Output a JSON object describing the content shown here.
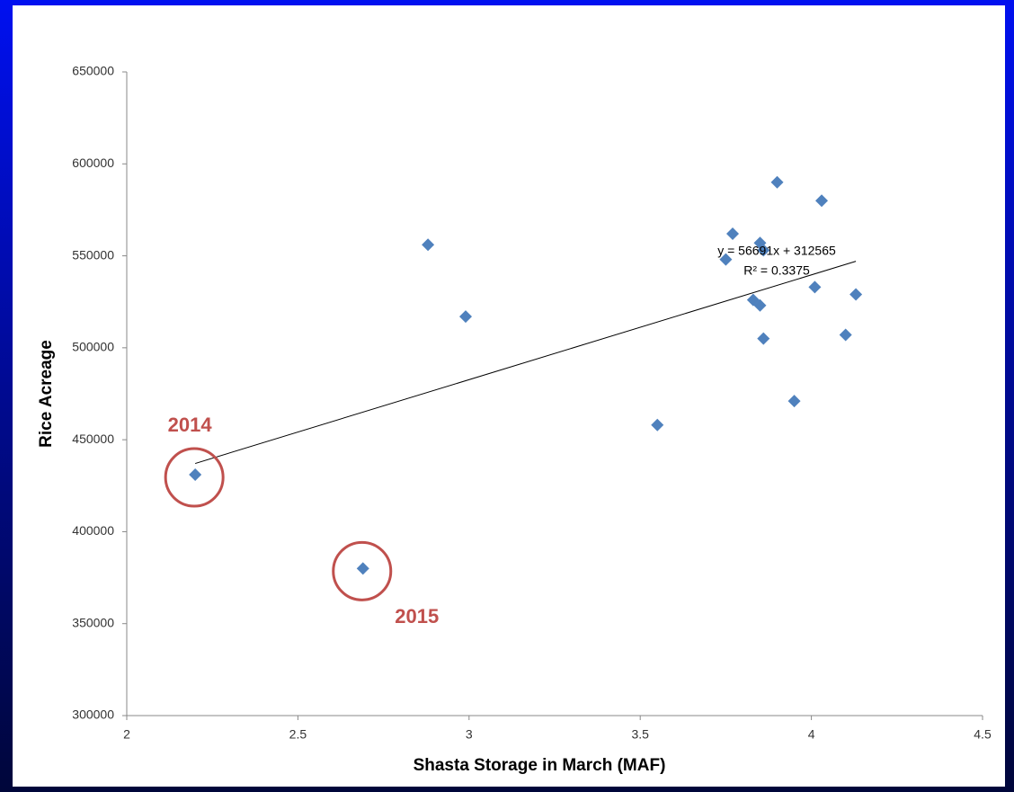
{
  "chart_data": {
    "type": "scatter",
    "x_label": "Shasta Storage in March (MAF)",
    "y_label": "Rice Acreage",
    "x": [
      2.2,
      2.69,
      2.88,
      2.99,
      3.55,
      3.75,
      3.77,
      3.83,
      3.85,
      3.85,
      3.86,
      3.86,
      3.9,
      3.95,
      4.01,
      4.03,
      4.1,
      4.13
    ],
    "y": [
      431000,
      380000,
      556000,
      517000,
      458000,
      548000,
      562000,
      526000,
      557000,
      523000,
      553000,
      505000,
      590000,
      471000,
      533000,
      580000,
      507000,
      529000
    ],
    "color": "#4f81bd",
    "xlim": [
      2,
      4.5
    ],
    "xticks": [
      2,
      2.5,
      3,
      3.5,
      4,
      4.5
    ],
    "ylim": [
      300000,
      650000
    ],
    "yticks": [
      300000,
      350000,
      400000,
      450000,
      500000,
      550000,
      600000,
      650000
    ],
    "grid": false,
    "trendline": {
      "equation": "y = 56691x + 312565",
      "r_squared": "R² = 0.3375",
      "color": "#000000"
    },
    "annotations": [
      {
        "text": "2014",
        "color": "#c0504d"
      },
      {
        "text": "2015",
        "color": "#c0504d"
      }
    ]
  }
}
